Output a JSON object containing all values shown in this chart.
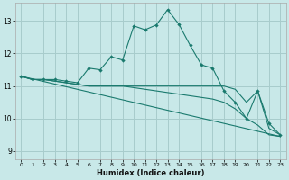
{
  "xlabel": "Humidex (Indice chaleur)",
  "bg_color": "#c8e8e8",
  "grid_color": "#a8cccc",
  "line_color": "#1a7a6e",
  "xlim": [
    -0.5,
    23.5
  ],
  "ylim": [
    8.75,
    13.55
  ],
  "xticks": [
    0,
    1,
    2,
    3,
    4,
    5,
    6,
    7,
    8,
    9,
    10,
    11,
    12,
    13,
    14,
    15,
    16,
    17,
    18,
    19,
    20,
    21,
    22,
    23
  ],
  "yticks": [
    9,
    10,
    11,
    12,
    13
  ],
  "lines": [
    {
      "x": [
        0,
        1,
        2,
        3,
        4,
        5,
        6,
        7,
        8,
        9,
        10,
        11,
        12,
        13,
        14,
        15,
        16,
        17,
        18,
        19,
        20,
        21,
        22,
        23
      ],
      "y": [
        11.3,
        11.2,
        11.2,
        11.2,
        11.15,
        11.1,
        11.55,
        11.5,
        11.9,
        11.8,
        12.85,
        12.73,
        12.88,
        13.35,
        12.9,
        12.25,
        11.65,
        11.55,
        10.85,
        10.5,
        10.0,
        10.85,
        9.85,
        9.5
      ],
      "marker": true,
      "markersize": 2.2
    },
    {
      "x": [
        0,
        1,
        2,
        3,
        4,
        5,
        6,
        7,
        8,
        9,
        10,
        11,
        12,
        13,
        14,
        15,
        16,
        17,
        18,
        19,
        20,
        21,
        22,
        23
      ],
      "y": [
        11.3,
        11.2,
        11.2,
        11.15,
        11.1,
        11.05,
        11.0,
        11.0,
        11.0,
        11.0,
        11.0,
        11.0,
        11.0,
        11.0,
        11.0,
        11.0,
        11.0,
        11.0,
        11.0,
        10.9,
        10.5,
        10.85,
        9.7,
        9.5
      ],
      "marker": false,
      "markersize": 0
    },
    {
      "x": [
        0,
        1,
        2,
        3,
        4,
        5,
        6,
        7,
        8,
        9,
        10,
        11,
        12,
        13,
        14,
        15,
        16,
        17,
        18,
        19,
        20,
        21,
        22,
        23
      ],
      "y": [
        11.3,
        11.2,
        11.2,
        11.15,
        11.1,
        11.05,
        11.0,
        11.0,
        11.0,
        11.0,
        10.95,
        10.9,
        10.85,
        10.8,
        10.75,
        10.7,
        10.65,
        10.6,
        10.5,
        10.3,
        10.0,
        9.8,
        9.5,
        9.45
      ],
      "marker": false,
      "markersize": 0
    },
    {
      "x": [
        0,
        23
      ],
      "y": [
        11.3,
        9.45
      ],
      "marker": false,
      "markersize": 0
    }
  ]
}
